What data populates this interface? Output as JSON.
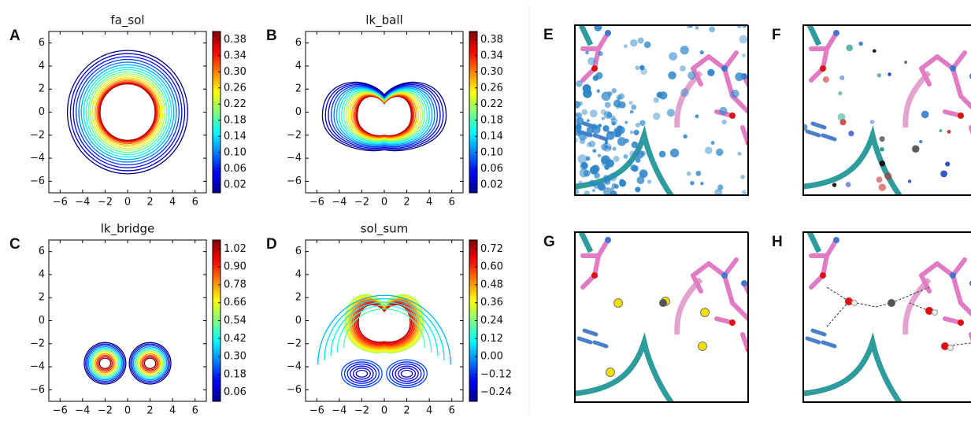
{
  "panels": [
    {
      "letter": "A",
      "title": "fa_sol",
      "xlim": [
        -7,
        7
      ],
      "ylim": [
        -7,
        7
      ],
      "xticks": [
        {
          "value": -6,
          "label": "−6"
        },
        {
          "value": -4,
          "label": "−4"
        },
        {
          "value": -2,
          "label": "−2"
        },
        0,
        2,
        4,
        6
      ],
      "yticks": [
        {
          "value": -6,
          "label": "−6"
        },
        {
          "value": -4,
          "label": "−4"
        },
        {
          "value": -2,
          "label": "−2"
        },
        0,
        2,
        4,
        6
      ],
      "clim": [
        0,
        0.4
      ],
      "colorbar_ticks": [
        0.02,
        0.06,
        {
          "value": 0.1,
          "label": "0.10"
        },
        0.14,
        0.18,
        0.22,
        0.26,
        {
          "value": 0.3,
          "label": "0.30"
        },
        0.34,
        0.38
      ]
    },
    {
      "letter": "B",
      "title": "lk_ball",
      "xlim": [
        -7,
        7
      ],
      "ylim": [
        -7,
        7
      ],
      "xticks": [
        {
          "value": -6,
          "label": "−6"
        },
        {
          "value": -4,
          "label": "−4"
        },
        {
          "value": -2,
          "label": "−2"
        },
        0,
        2,
        4,
        6
      ],
      "yticks": [
        {
          "value": -6,
          "label": "−6"
        },
        {
          "value": -4,
          "label": "−4"
        },
        {
          "value": -2,
          "label": "−2"
        },
        0,
        2,
        4,
        6
      ],
      "clim": [
        0,
        0.4
      ],
      "colorbar_ticks": [
        0.02,
        0.06,
        {
          "value": 0.1,
          "label": "0.10"
        },
        0.14,
        0.18,
        0.22,
        0.26,
        {
          "value": 0.3,
          "label": "0.30"
        },
        0.34,
        0.38
      ]
    },
    {
      "letter": "C",
      "title": "lk_bridge",
      "xlim": [
        -7,
        7
      ],
      "ylim": [
        -7,
        7
      ],
      "xticks": [
        {
          "value": -6,
          "label": "−6"
        },
        {
          "value": -4,
          "label": "−4"
        },
        {
          "value": -2,
          "label": "−2"
        },
        0,
        2,
        4,
        6
      ],
      "yticks": [
        {
          "value": -6,
          "label": "−6"
        },
        {
          "value": -4,
          "label": "−4"
        },
        {
          "value": -2,
          "label": "−2"
        },
        0,
        2,
        4,
        6
      ],
      "clim": [
        0,
        1.08
      ],
      "colorbar_ticks": [
        0.06,
        0.18,
        {
          "value": 0.3,
          "label": "0.30"
        },
        0.42,
        0.54,
        0.66,
        0.78,
        {
          "value": 0.9,
          "label": "0.90"
        },
        1.02
      ]
    },
    {
      "letter": "D",
      "title": "sol_sum",
      "xlim": [
        -7,
        7
      ],
      "ylim": [
        -7,
        7
      ],
      "xticks": [
        {
          "value": -6,
          "label": "−6"
        },
        {
          "value": -4,
          "label": "−4"
        },
        {
          "value": -2,
          "label": "−2"
        },
        0,
        2,
        4,
        6
      ],
      "yticks": [
        {
          "value": -6,
          "label": "−6"
        },
        {
          "value": -4,
          "label": "−4"
        },
        {
          "value": -2,
          "label": "−2"
        },
        0,
        2,
        4,
        6
      ],
      "clim": [
        -0.3,
        0.78
      ],
      "colorbar_ticks": [
        {
          "value": -0.24,
          "label": "−0.24"
        },
        {
          "value": -0.12,
          "label": "−0.12"
        },
        {
          "value": 0,
          "label": "0.00"
        },
        0.12,
        0.24,
        0.36,
        0.48,
        {
          "value": 0.6,
          "label": "0.60"
        },
        0.72
      ]
    }
  ],
  "images": [
    {
      "letter": "E"
    },
    {
      "letter": "F"
    },
    {
      "letter": "G"
    },
    {
      "letter": "H"
    }
  ]
}
